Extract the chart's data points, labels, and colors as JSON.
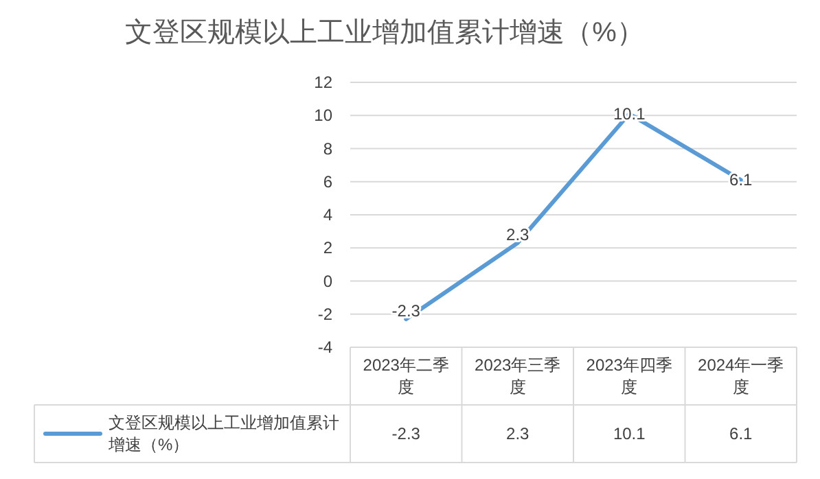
{
  "chart_data": {
    "type": "line",
    "title": "文登区规模以上工业增加值累计增速（%）",
    "categories": [
      "2023年二季度",
      "2023年三季度",
      "2023年四季度",
      "2024年一季度"
    ],
    "series": [
      {
        "name": "文登区规模以上工业增加值累计增速（%）",
        "color": "#5b9bd5",
        "values": [
          -2.3,
          2.3,
          10.1,
          6.1
        ],
        "value_labels": [
          "-2.3",
          "2.3",
          "10.1",
          "6.1"
        ]
      }
    ],
    "ylim": [
      -4,
      12
    ],
    "yticks": [
      -4,
      -2,
      0,
      2,
      4,
      6,
      8,
      10,
      12
    ],
    "grid": "y",
    "data_labels": true,
    "legend": "bottom left",
    "marker": "none",
    "line_style": "solid"
  }
}
